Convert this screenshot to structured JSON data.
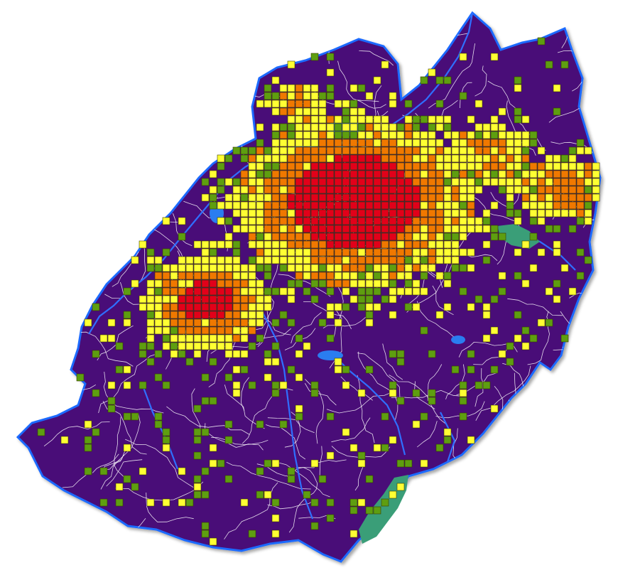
{
  "colors": {
    "land": "#4a0a78",
    "water": "#1e6bff",
    "lake": "#2a7df0",
    "park": "#3a9e78",
    "roads": "#ffffff",
    "density_very_high": "#e2001a",
    "density_high": "#f07800",
    "density_medium": "#ffff33",
    "density_low": "#5e9e10"
  },
  "map": {
    "type": "density-grid",
    "legend": [],
    "classes": [
      {
        "class": "very-high",
        "color": "#e2001a"
      },
      {
        "class": "high",
        "color": "#f07800"
      },
      {
        "class": "medium",
        "color": "#ffff33"
      },
      {
        "class": "low",
        "color": "#5e9e10"
      }
    ]
  }
}
